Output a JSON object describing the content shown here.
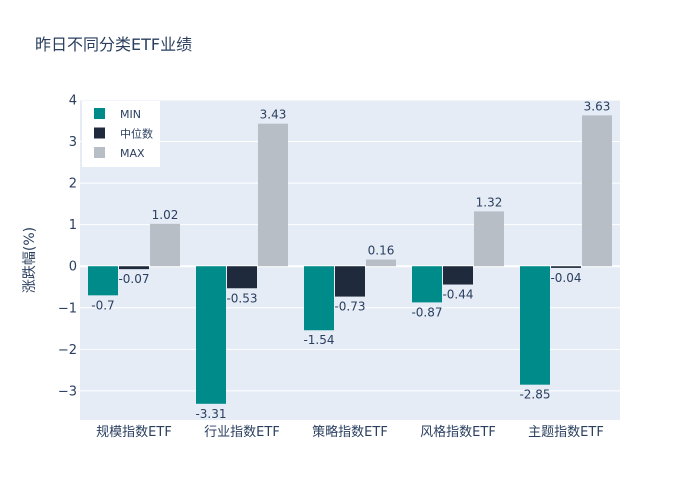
{
  "chart_data": {
    "type": "bar",
    "title": "昨日不同分类ETF业绩",
    "xlabel": "",
    "ylabel": "涨跌幅(%)",
    "ylim": [
      -3.7,
      4
    ],
    "yticks": [
      "4",
      "3",
      "2",
      "1",
      "0",
      "−1",
      "−2",
      "−3"
    ],
    "ytick_values": [
      4,
      3,
      2,
      1,
      0,
      -1,
      -2,
      -3
    ],
    "categories": [
      "规模指数ETF",
      "行业指数ETF",
      "策略指数ETF",
      "风格指数ETF",
      "主题指数ETF"
    ],
    "series": [
      {
        "name": "MIN",
        "color": "#008b8b",
        "values": [
          -0.7,
          -3.31,
          -1.54,
          -0.87,
          -2.85
        ],
        "labels": [
          "-0.7",
          "-3.31",
          "-1.54",
          "-0.87",
          "-2.85"
        ]
      },
      {
        "name": "中位数",
        "color": "#1f2a3c",
        "values": [
          -0.07,
          -0.53,
          -0.73,
          -0.44,
          -0.04
        ],
        "labels": [
          "-0.07",
          "-0.53",
          "-0.73",
          "-0.44",
          "-0.04"
        ]
      },
      {
        "name": "MAX",
        "color": "#b7bec6",
        "values": [
          1.02,
          3.43,
          0.16,
          1.32,
          3.63
        ],
        "labels": [
          "1.02",
          "3.43",
          "0.16",
          "1.32",
          "3.63"
        ]
      }
    ],
    "legend_position": "top-left",
    "grid": true
  }
}
